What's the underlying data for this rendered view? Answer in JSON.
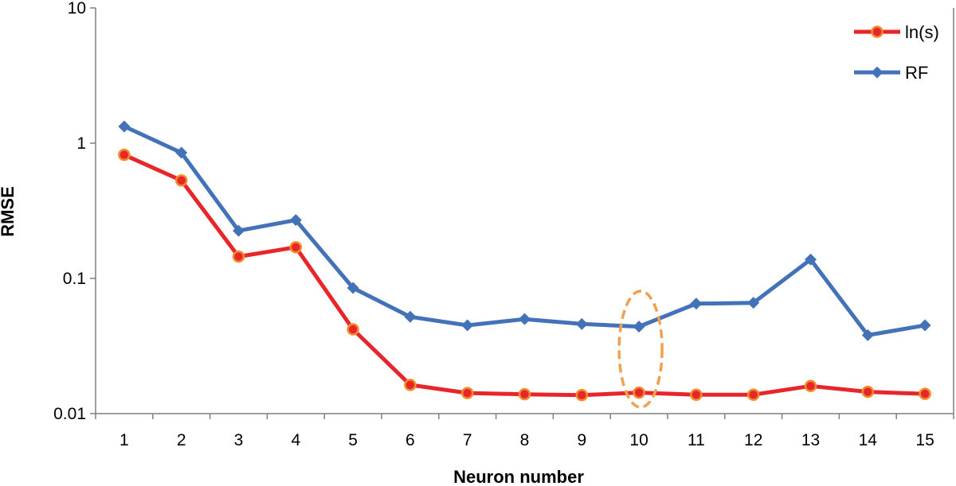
{
  "chart_data": {
    "type": "line",
    "title": "",
    "xlabel": "Neuron number",
    "ylabel": "RMSE",
    "yscale": "log",
    "ylim": [
      0.01,
      10
    ],
    "yticks": [
      "0.01",
      "0.1",
      "1",
      "10"
    ],
    "grid": false,
    "legend_position": "top-right",
    "categories": [
      "1",
      "2",
      "3",
      "4",
      "5",
      "6",
      "7",
      "8",
      "9",
      "10",
      "11",
      "12",
      "13",
      "14",
      "15"
    ],
    "series": [
      {
        "name": "ln(s)",
        "color": "#e8262a",
        "marker": "circle",
        "marker_color": "#f08c2e",
        "values": [
          0.82,
          0.53,
          0.145,
          0.17,
          0.042,
          0.0163,
          0.0142,
          0.0139,
          0.0137,
          0.0143,
          0.0138,
          0.0138,
          0.016,
          0.0145,
          0.014
        ]
      },
      {
        "name": "RF",
        "color": "#4472b8",
        "marker": "diamond",
        "values": [
          1.33,
          0.85,
          0.225,
          0.27,
          0.085,
          0.052,
          0.045,
          0.05,
          0.046,
          0.044,
          0.065,
          0.066,
          0.138,
          0.038,
          0.045
        ]
      }
    ],
    "annotation": {
      "type": "dashed-ellipse",
      "color": "#f0a050",
      "category": "10"
    }
  }
}
